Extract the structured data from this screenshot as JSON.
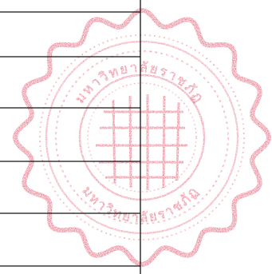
{
  "image": {
    "description_kind": "scanned-seal-stamp-over-ruled-lines",
    "seal": {
      "ink_color": "#e2566e",
      "ink_light_color": "#f2a7b5",
      "top_arc_text": "มหาวิทยาลัยราชภัฏ",
      "bottom_arc_text": "มหาวิทยาลัยราชภัฏ",
      "center_symbol": "grid-emblem"
    },
    "lines": {
      "color": "#111111",
      "horizontal_count": 6,
      "vertical_count": 1
    }
  }
}
